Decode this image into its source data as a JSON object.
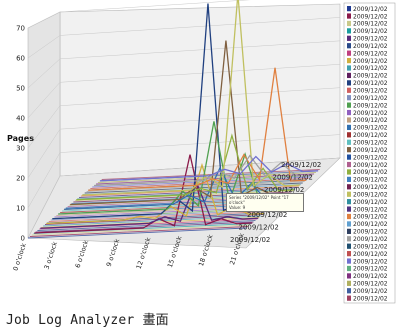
{
  "caption": "Job Log Analyzer 畫面",
  "chart_data": {
    "type": "line",
    "chart_style": "3d-ribbon",
    "ylabel": "Pages",
    "xlabel": "",
    "y_ticks": [
      0,
      10,
      20,
      30,
      40,
      50,
      60,
      70
    ],
    "ylim": [
      0,
      70
    ],
    "grid": "on",
    "x_categories": [
      "0 o'clock",
      "3 o'clock",
      "6 o'clock",
      "9 o'clock",
      "12 o'clock",
      "15 o'clock",
      "18 o'clock",
      "21 o'clock"
    ],
    "depth_labels": [
      "2009/12/02",
      "2009/12/02",
      "2009/12/02",
      "2009/12/02",
      "2009/12/02",
      "2009/12/02",
      "2009/12/02"
    ],
    "legend_placement": "right",
    "legend_entries": [
      "2009/12/02",
      "2009/12/02",
      "2009/12/02",
      "2009/12/02",
      "2009/12/02",
      "2009/12/02",
      "2009/12/02",
      "2009/12/02",
      "2009/12/02",
      "2009/12/02",
      "2009/12/02",
      "2009/12/02",
      "2009/12/02",
      "2009/12/02",
      "2009/12/02",
      "2009/12/02",
      "2009/12/02",
      "2009/12/02",
      "2009/12/02",
      "2009/12/02",
      "2009/12/02",
      "2009/12/02",
      "2009/12/02",
      "2009/12/02",
      "2009/12/02",
      "2009/12/02",
      "2009/12/02",
      "2009/12/02",
      "2009/12/02",
      "2009/12/02",
      "2009/12/02",
      "2009/12/02",
      "2009/12/02",
      "2009/12/02",
      "2009/12/02",
      "2009/12/02",
      "2009/12/02",
      "2009/12/02",
      "2009/12/02",
      "2009/12/02"
    ],
    "legend_colors": [
      "#1f3a93",
      "#8b1a4a",
      "#c9c98a",
      "#1a9ea0",
      "#5a2a7a",
      "#2a4a8a",
      "#c04080",
      "#d0b040",
      "#40a0b0",
      "#602060",
      "#204080",
      "#d06060",
      "#8090c0",
      "#50a050",
      "#9060c0",
      "#c0a080",
      "#3070b0",
      "#a03030",
      "#60c0c0",
      "#806040",
      "#2050a0",
      "#b06090",
      "#90b040",
      "#4080c0",
      "#702050",
      "#c0c060",
      "#3090a0",
      "#503080",
      "#e08040",
      "#60a0d0",
      "#304060",
      "#a0a0a0",
      "#205070",
      "#c05050",
      "#7070d0",
      "#60b080",
      "#803080",
      "#b0b060",
      "#4060a0",
      "#a04060"
    ],
    "series": [
      {
        "values": [
          0,
          0,
          0,
          0,
          3,
          25,
          2,
          0
        ]
      },
      {
        "values": [
          0,
          0,
          0,
          0,
          2,
          14,
          1,
          0
        ]
      },
      {
        "values": [
          0,
          0,
          0,
          1,
          4,
          18,
          3,
          0
        ]
      },
      {
        "values": [
          0,
          0,
          0,
          0,
          5,
          73,
          2,
          0
        ]
      },
      {
        "values": [
          0,
          0,
          0,
          0,
          6,
          30,
          18,
          0
        ]
      },
      {
        "values": [
          0,
          0,
          0,
          0,
          3,
          12,
          6,
          0
        ]
      },
      {
        "values": [
          0,
          0,
          0,
          0,
          4,
          55,
          3,
          0
        ]
      },
      {
        "values": [
          0,
          0,
          0,
          0,
          2,
          20,
          8,
          0
        ]
      },
      {
        "values": [
          0,
          0,
          0,
          0,
          5,
          68,
          4,
          0
        ]
      },
      {
        "values": [
          0,
          0,
          0,
          0,
          2,
          10,
          40,
          0
        ]
      },
      {
        "values": [
          0,
          0,
          0,
          0,
          3,
          8,
          5,
          0
        ]
      },
      {
        "values": [
          0,
          0,
          0,
          0,
          2,
          6,
          3,
          0
        ]
      }
    ],
    "annotation": {
      "lines": [
        "Series \"2009/12/02\" Point \"17 o'clock\"",
        "Value: 9"
      ]
    }
  }
}
